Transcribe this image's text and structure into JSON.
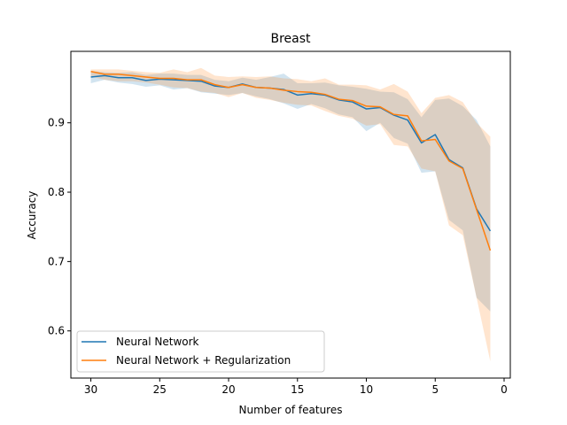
{
  "chart_data": {
    "type": "line",
    "title": "Breast",
    "xlabel": "Number of features",
    "ylabel": "Accuracy",
    "xlim": [
      31.45,
      -0.45
    ],
    "ylim": [
      0.532,
      1.003
    ],
    "xaxis_inverted": true,
    "x_ticks": [
      30,
      25,
      20,
      15,
      10,
      5,
      0
    ],
    "y_ticks": [
      0.6,
      0.7,
      0.8,
      0.9
    ],
    "legend_position": "bottom-left",
    "grid": false,
    "x": [
      30,
      29,
      28,
      27,
      26,
      25,
      24,
      23,
      22,
      21,
      20,
      19,
      18,
      17,
      16,
      15,
      14,
      13,
      12,
      11,
      10,
      9,
      8,
      7,
      6,
      5,
      4,
      3,
      2,
      1
    ],
    "series": [
      {
        "name": "Neural Network",
        "color": "#1f77b4",
        "values": [
          0.966,
          0.968,
          0.965,
          0.965,
          0.961,
          0.963,
          0.962,
          0.961,
          0.96,
          0.953,
          0.951,
          0.956,
          0.951,
          0.95,
          0.948,
          0.94,
          0.942,
          0.94,
          0.933,
          0.93,
          0.92,
          0.922,
          0.911,
          0.904,
          0.871,
          0.883,
          0.847,
          0.835,
          0.776,
          0.744
        ],
        "band_upper": [
          0.975,
          0.973,
          0.972,
          0.973,
          0.969,
          0.971,
          0.971,
          0.969,
          0.969,
          0.962,
          0.96,
          0.965,
          0.962,
          0.966,
          0.971,
          0.957,
          0.957,
          0.958,
          0.954,
          0.952,
          0.949,
          0.945,
          0.944,
          0.934,
          0.908,
          0.933,
          0.935,
          0.924,
          0.904,
          0.866
        ],
        "band_lower": [
          0.957,
          0.962,
          0.958,
          0.956,
          0.952,
          0.954,
          0.948,
          0.95,
          0.944,
          0.942,
          0.94,
          0.943,
          0.938,
          0.934,
          0.928,
          0.92,
          0.927,
          0.921,
          0.912,
          0.908,
          0.888,
          0.9,
          0.878,
          0.87,
          0.828,
          0.83,
          0.76,
          0.745,
          0.648,
          0.628
        ]
      },
      {
        "name": "Neural Network + Regularization",
        "color": "#ff7f0e",
        "values": [
          0.974,
          0.97,
          0.97,
          0.968,
          0.966,
          0.964,
          0.964,
          0.962,
          0.962,
          0.955,
          0.951,
          0.955,
          0.951,
          0.95,
          0.947,
          0.945,
          0.944,
          0.941,
          0.934,
          0.932,
          0.924,
          0.923,
          0.912,
          0.91,
          0.874,
          0.876,
          0.845,
          0.834,
          0.775,
          0.716
        ],
        "band_upper": [
          0.977,
          0.977,
          0.977,
          0.975,
          0.973,
          0.972,
          0.977,
          0.973,
          0.979,
          0.968,
          0.966,
          0.967,
          0.966,
          0.967,
          0.964,
          0.963,
          0.96,
          0.964,
          0.955,
          0.955,
          0.954,
          0.948,
          0.956,
          0.945,
          0.914,
          0.936,
          0.94,
          0.93,
          0.9,
          0.88
        ],
        "band_lower": [
          0.967,
          0.962,
          0.96,
          0.96,
          0.958,
          0.955,
          0.951,
          0.95,
          0.945,
          0.943,
          0.937,
          0.943,
          0.936,
          0.933,
          0.929,
          0.926,
          0.925,
          0.917,
          0.91,
          0.906,
          0.896,
          0.898,
          0.868,
          0.866,
          0.834,
          0.83,
          0.752,
          0.738,
          0.648,
          0.556
        ]
      }
    ]
  }
}
